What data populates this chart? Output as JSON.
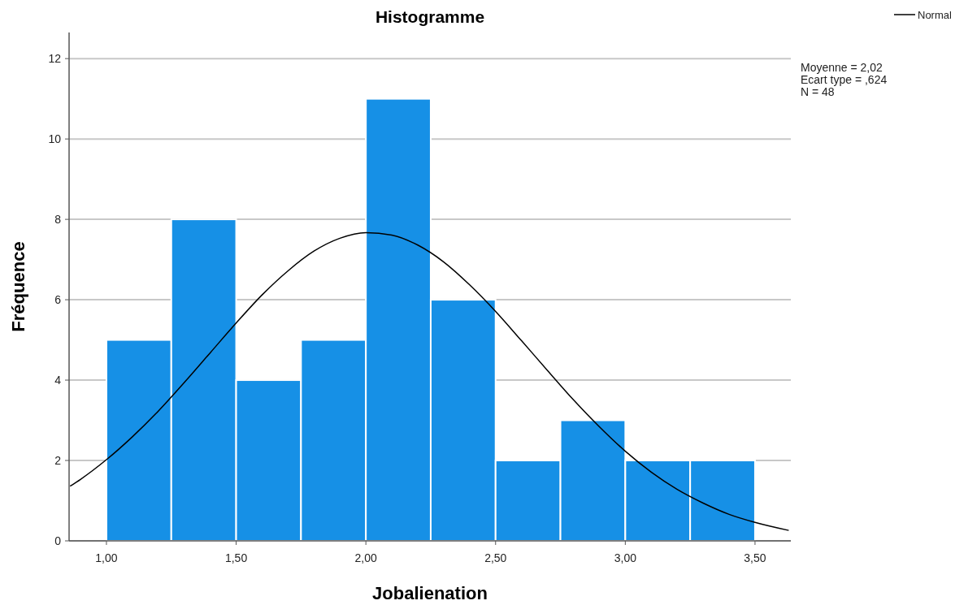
{
  "chart_data": {
    "type": "histogram",
    "title": "Histogramme",
    "xlabel": "Jobalienation",
    "ylabel": "Fréquence",
    "bins": [
      1.0,
      1.25,
      1.5,
      1.75,
      2.0,
      2.25,
      2.5,
      2.75,
      3.0,
      3.25,
      3.5
    ],
    "values": [
      5,
      8,
      4,
      5,
      11,
      6,
      2,
      3,
      2,
      2
    ],
    "color": "#1690e6",
    "series": [
      {
        "name": "Normal",
        "type": "line",
        "color": "#000000",
        "x": [
          0.86,
          0.9,
          1.0,
          1.1,
          1.2,
          1.3,
          1.4,
          1.5,
          1.6,
          1.7,
          1.8,
          1.9,
          2.0,
          2.1,
          2.2,
          2.3,
          2.4,
          2.5,
          2.6,
          2.7,
          2.8,
          2.9,
          3.0,
          3.1,
          3.2,
          3.3,
          3.4,
          3.5,
          3.63
        ],
        "values": [
          1.36,
          1.53,
          2.02,
          2.59,
          3.23,
          3.94,
          4.68,
          5.42,
          6.12,
          6.72,
          7.21,
          7.53,
          7.67,
          7.61,
          7.36,
          6.94,
          6.37,
          5.71,
          4.98,
          4.24,
          3.51,
          2.84,
          2.23,
          1.71,
          1.28,
          0.94,
          0.66,
          0.46,
          0.26
        ]
      }
    ],
    "xlim": [
      0.856,
      3.638
    ],
    "xticks": [
      {
        "value": 1.0,
        "label": "1,00"
      },
      {
        "value": 1.5,
        "label": "1,50"
      },
      {
        "value": 2.0,
        "label": "2,00"
      },
      {
        "value": 2.5,
        "label": "2,50"
      },
      {
        "value": 3.0,
        "label": "3,00"
      },
      {
        "value": 3.5,
        "label": "3,50"
      }
    ],
    "ylim": [
      0,
      12.65
    ],
    "yticks": [
      0,
      2,
      4,
      6,
      8,
      10,
      12
    ],
    "grid": "y",
    "legend": "top right",
    "annotations": [
      "Moyenne = 2,02",
      "Ecart type = ,624",
      "N = 48"
    ]
  }
}
